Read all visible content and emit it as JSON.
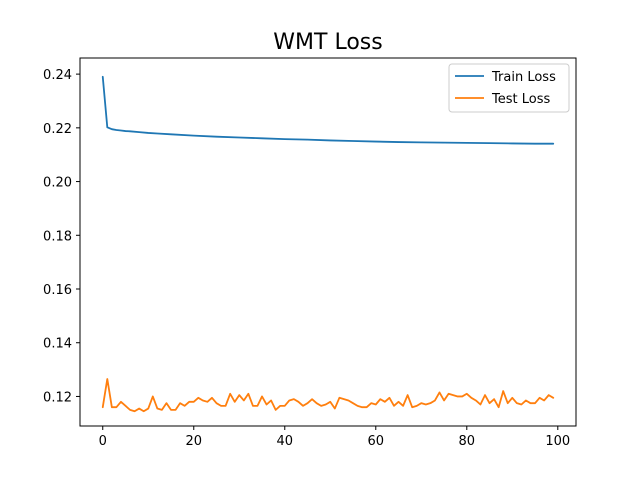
{
  "chart_data": {
    "type": "line",
    "title": "WMT Loss",
    "xlabel": "",
    "ylabel": "",
    "xlim": [
      -5,
      104
    ],
    "ylim": [
      0.109,
      0.246
    ],
    "xticks": [
      0,
      20,
      40,
      60,
      80,
      100
    ],
    "yticks": [
      0.12,
      0.14,
      0.16,
      0.18,
      0.2,
      0.22,
      0.24
    ],
    "ytick_labels": [
      "0.12",
      "0.14",
      "0.16",
      "0.18",
      "0.20",
      "0.22",
      "0.24"
    ],
    "grid": false,
    "legend_position": "top-right",
    "series": [
      {
        "name": "Train Loss",
        "color": "#1f77b4",
        "x": [
          0,
          1,
          2,
          3,
          4,
          5,
          6,
          8,
          10,
          12,
          15,
          20,
          25,
          30,
          35,
          40,
          45,
          50,
          55,
          60,
          65,
          70,
          75,
          80,
          85,
          90,
          95,
          99
        ],
        "values": [
          0.239,
          0.2202,
          0.2195,
          0.2192,
          0.219,
          0.2188,
          0.2187,
          0.2184,
          0.2181,
          0.2179,
          0.2176,
          0.2171,
          0.2167,
          0.2164,
          0.2161,
          0.2158,
          0.2156,
          0.2153,
          0.2151,
          0.2149,
          0.2147,
          0.2146,
          0.2145,
          0.2144,
          0.2143,
          0.2142,
          0.2141,
          0.2141
        ]
      },
      {
        "name": "Test Loss",
        "color": "#ff7f0e",
        "x": [
          0,
          1,
          2,
          3,
          4,
          5,
          6,
          7,
          8,
          9,
          10,
          11,
          12,
          13,
          14,
          15,
          16,
          17,
          18,
          19,
          20,
          21,
          22,
          23,
          24,
          25,
          26,
          27,
          28,
          29,
          30,
          31,
          32,
          33,
          34,
          35,
          36,
          37,
          38,
          39,
          40,
          41,
          42,
          43,
          44,
          45,
          46,
          47,
          48,
          49,
          50,
          51,
          52,
          53,
          54,
          55,
          56,
          57,
          58,
          59,
          60,
          61,
          62,
          63,
          64,
          65,
          66,
          67,
          68,
          69,
          70,
          71,
          72,
          73,
          74,
          75,
          76,
          77,
          78,
          79,
          80,
          81,
          82,
          83,
          84,
          85,
          86,
          87,
          88,
          89,
          90,
          91,
          92,
          93,
          94,
          95,
          96,
          97,
          98,
          99
        ],
        "values": [
          0.116,
          0.1265,
          0.116,
          0.116,
          0.118,
          0.1165,
          0.115,
          0.1145,
          0.1155,
          0.1145,
          0.1155,
          0.12,
          0.1155,
          0.115,
          0.1175,
          0.115,
          0.115,
          0.1175,
          0.1165,
          0.118,
          0.118,
          0.1195,
          0.1185,
          0.118,
          0.1195,
          0.1175,
          0.1165,
          0.1165,
          0.121,
          0.118,
          0.1205,
          0.1185,
          0.121,
          0.1165,
          0.1165,
          0.12,
          0.117,
          0.1185,
          0.115,
          0.1165,
          0.1165,
          0.1185,
          0.119,
          0.118,
          0.1165,
          0.1175,
          0.119,
          0.1175,
          0.1165,
          0.117,
          0.118,
          0.1155,
          0.1195,
          0.119,
          0.1185,
          0.1175,
          0.1165,
          0.116,
          0.116,
          0.1175,
          0.117,
          0.119,
          0.118,
          0.1195,
          0.1165,
          0.118,
          0.1165,
          0.1205,
          0.116,
          0.1165,
          0.1175,
          0.117,
          0.1175,
          0.1185,
          0.1215,
          0.1185,
          0.121,
          0.1205,
          0.12,
          0.12,
          0.121,
          0.1195,
          0.1185,
          0.117,
          0.1205,
          0.1175,
          0.119,
          0.116,
          0.122,
          0.1175,
          0.1195,
          0.1175,
          0.117,
          0.1185,
          0.1175,
          0.1175,
          0.1195,
          0.1185,
          0.1205,
          0.1195
        ]
      }
    ]
  }
}
